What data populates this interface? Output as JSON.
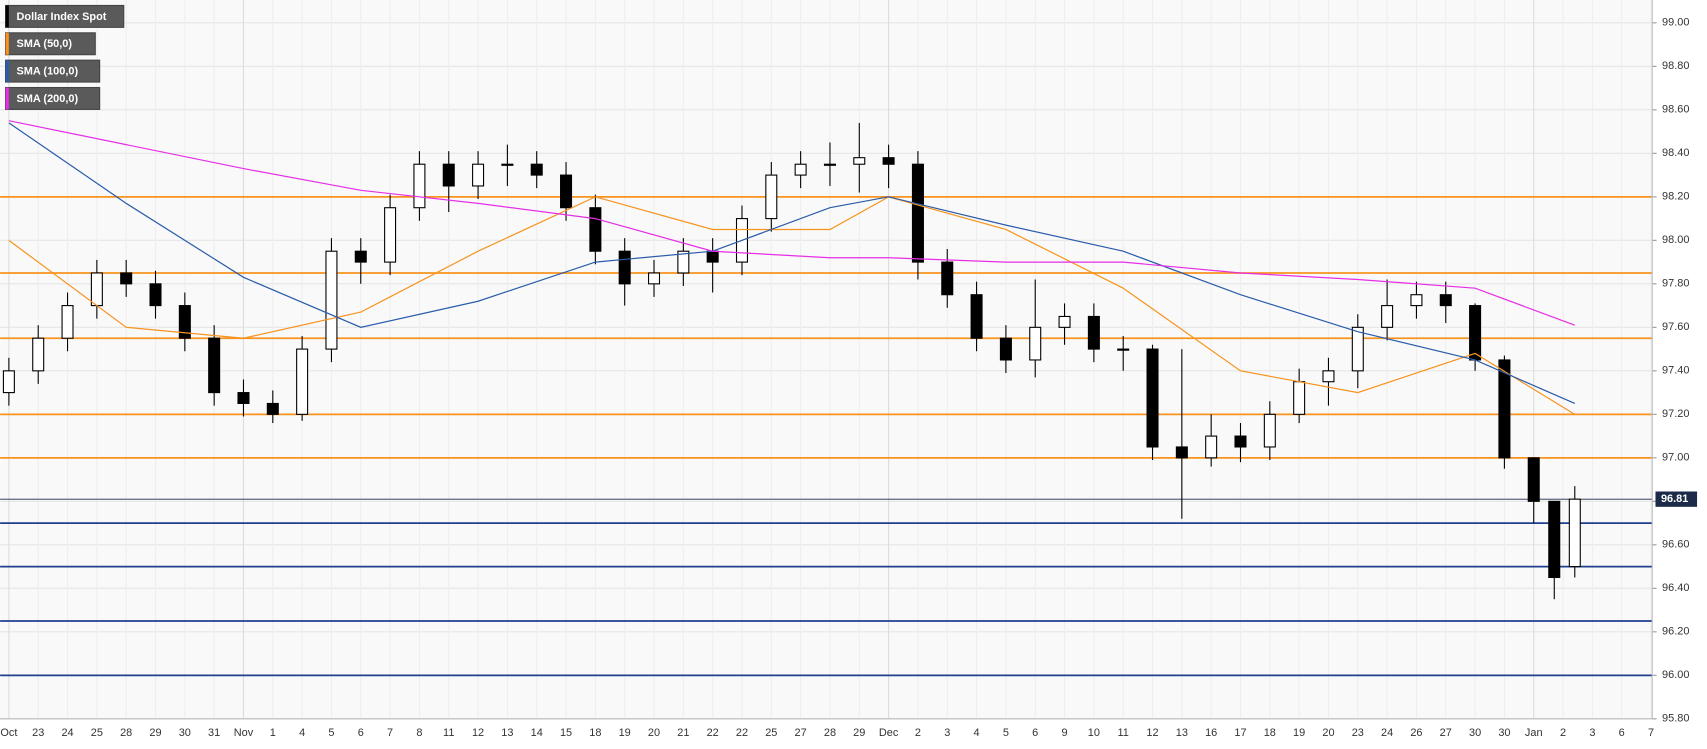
{
  "chart_data": {
    "type": "candlestick",
    "name": "Dollar Index Spot",
    "categories": [
      "Oct",
      "23",
      "24",
      "25",
      "28",
      "29",
      "30",
      "31",
      "Nov",
      "1",
      "4",
      "5",
      "6",
      "7",
      "8",
      "11",
      "12",
      "13",
      "14",
      "15",
      "18",
      "19",
      "20",
      "21",
      "22",
      "22",
      "25",
      "27",
      "28",
      "29",
      "Dec",
      "2",
      "3",
      "4",
      "5",
      "6",
      "9",
      "10",
      "11",
      "12",
      "13",
      "16",
      "17",
      "18",
      "19",
      "20",
      "23",
      "24",
      "26",
      "27",
      "30",
      "30",
      "Jan",
      "2",
      "3",
      "6",
      "7"
    ],
    "xlim": [
      -0.3,
      56.04
    ],
    "x": [
      0,
      1,
      2,
      3,
      4,
      5,
      6,
      7,
      8,
      9,
      10,
      11,
      12,
      13,
      14,
      15,
      16,
      17,
      18,
      19,
      20,
      21,
      22,
      23,
      24,
      25,
      26,
      27,
      28,
      29,
      30,
      31,
      32,
      33,
      34,
      35,
      36,
      37,
      38,
      39,
      40,
      41,
      42,
      43,
      44,
      45,
      46,
      47,
      48,
      49,
      50,
      51,
      52,
      52.7,
      53.4
    ],
    "open": [
      97.3,
      97.4,
      97.55,
      97.7,
      97.85,
      97.8,
      97.7,
      97.55,
      97.3,
      97.25,
      97.2,
      97.5,
      97.95,
      97.9,
      98.15,
      98.35,
      98.25,
      98.35,
      98.35,
      98.3,
      98.15,
      97.95,
      97.8,
      97.85,
      97.95,
      97.9,
      98.1,
      98.3,
      98.35,
      98.35,
      98.38,
      98.35,
      97.9,
      97.75,
      97.55,
      97.45,
      97.6,
      97.65,
      97.5,
      97.5,
      97.05,
      97.0,
      97.1,
      97.05,
      97.2,
      97.35,
      97.4,
      97.6,
      97.7,
      97.75,
      97.7,
      97.45,
      97.0,
      96.8,
      96.5
    ],
    "high": [
      97.46,
      97.61,
      97.76,
      97.91,
      97.91,
      97.86,
      97.76,
      97.61,
      97.36,
      97.31,
      97.56,
      98.01,
      98.01,
      98.21,
      98.41,
      98.41,
      98.41,
      98.44,
      98.41,
      98.36,
      98.21,
      98.01,
      97.91,
      98.01,
      98.01,
      98.16,
      98.36,
      98.41,
      98.45,
      98.54,
      98.44,
      98.41,
      97.96,
      97.81,
      97.61,
      97.82,
      97.71,
      97.71,
      97.56,
      97.52,
      97.5,
      97.2,
      97.16,
      97.26,
      97.41,
      97.46,
      97.66,
      97.82,
      97.81,
      97.81,
      97.71,
      97.47,
      97.0,
      96.8,
      96.87
    ],
    "low": [
      97.24,
      97.34,
      97.49,
      97.64,
      97.74,
      97.64,
      97.49,
      97.24,
      97.19,
      97.16,
      97.17,
      97.44,
      97.8,
      97.84,
      98.09,
      98.13,
      98.19,
      98.25,
      98.24,
      98.09,
      97.89,
      97.7,
      97.74,
      97.79,
      97.76,
      97.84,
      98.04,
      98.24,
      98.25,
      98.22,
      98.24,
      97.82,
      97.69,
      97.49,
      97.39,
      97.37,
      97.52,
      97.44,
      97.4,
      96.99,
      96.72,
      96.96,
      96.98,
      96.99,
      97.16,
      97.24,
      97.32,
      97.54,
      97.64,
      97.62,
      97.4,
      96.95,
      96.7,
      96.35,
      96.45
    ],
    "close": [
      97.4,
      97.55,
      97.7,
      97.85,
      97.8,
      97.7,
      97.55,
      97.3,
      97.25,
      97.2,
      97.5,
      97.95,
      97.9,
      98.15,
      98.35,
      98.25,
      98.35,
      98.35,
      98.3,
      98.15,
      97.95,
      97.8,
      97.85,
      97.95,
      97.9,
      98.1,
      98.3,
      98.35,
      98.35,
      98.38,
      98.35,
      97.9,
      97.75,
      97.55,
      97.45,
      97.6,
      97.65,
      97.5,
      97.5,
      97.05,
      97.0,
      97.1,
      97.05,
      97.2,
      97.35,
      97.4,
      97.6,
      97.7,
      97.75,
      97.7,
      97.45,
      97.0,
      96.8,
      96.45,
      96.81
    ],
    "up_color": "#ffffff",
    "down_color": "#000000",
    "color": "#000000",
    "series": [
      {
        "name": "SMA (50,0)",
        "color": "#f7931e",
        "x": [
          0,
          4,
          8,
          12,
          16,
          20,
          24,
          28,
          30,
          34,
          38,
          42,
          46,
          50,
          53.4
        ],
        "values": [
          98.0,
          97.6,
          97.55,
          97.67,
          97.95,
          98.2,
          98.05,
          98.05,
          98.2,
          98.05,
          97.78,
          97.4,
          97.3,
          97.48,
          97.2
        ]
      },
      {
        "name": "SMA (100,0)",
        "color": "#2a5caa",
        "x": [
          0,
          4,
          8,
          12,
          16,
          20,
          24,
          28,
          30,
          34,
          38,
          42,
          46,
          50,
          53.4
        ],
        "values": [
          98.54,
          98.17,
          97.83,
          97.6,
          97.72,
          97.9,
          97.95,
          98.15,
          98.2,
          98.07,
          97.95,
          97.75,
          97.58,
          97.45,
          97.25
        ]
      },
      {
        "name": "SMA (200,0)",
        "color": "#e62ee6",
        "x": [
          0,
          4,
          8,
          12,
          16,
          20,
          24,
          28,
          30,
          34,
          38,
          42,
          46,
          50,
          53.4
        ],
        "values": [
          98.55,
          98.44,
          98.33,
          98.23,
          98.17,
          98.1,
          97.95,
          97.92,
          97.92,
          97.9,
          97.9,
          97.85,
          97.82,
          97.78,
          97.61
        ]
      }
    ],
    "levels": [
      {
        "value": 98.2,
        "color": "#f7931e"
      },
      {
        "value": 97.85,
        "color": "#f7931e"
      },
      {
        "value": 97.55,
        "color": "#f7931e"
      },
      {
        "value": 97.2,
        "color": "#f7931e"
      },
      {
        "value": 97.0,
        "color": "#f7931e"
      },
      {
        "value": 96.7,
        "color": "#1f3f8f"
      },
      {
        "value": 96.5,
        "color": "#1f3f8f"
      },
      {
        "value": 96.25,
        "color": "#1f3f8f"
      },
      {
        "value": 96.0,
        "color": "#1f3f8f"
      }
    ],
    "last_price": 96.81,
    "last_price_color": "#1c2b4a",
    "ylim": [
      95.8,
      99.1
    ],
    "yticks": [
      {
        "value": 95.8,
        "label": "95.80"
      },
      {
        "value": 96.0,
        "label": "96.00"
      },
      {
        "value": 96.2,
        "label": "96.20"
      },
      {
        "value": 96.4,
        "label": "96.40"
      },
      {
        "value": 96.6,
        "label": "96.60"
      },
      {
        "value": 96.8,
        "label": "96.80"
      },
      {
        "value": 97.0,
        "label": "97.00"
      },
      {
        "value": 97.2,
        "label": "97.20"
      },
      {
        "value": 97.4,
        "label": "97.40"
      },
      {
        "value": 97.6,
        "label": "97.60"
      },
      {
        "value": 97.8,
        "label": "97.80"
      },
      {
        "value": 98.0,
        "label": "98.00"
      },
      {
        "value": 98.2,
        "label": "98.20"
      },
      {
        "value": 98.4,
        "label": "98.40"
      },
      {
        "value": 98.6,
        "label": "98.60"
      },
      {
        "value": 98.8,
        "label": "98.80"
      },
      {
        "value": 99.0,
        "label": "99.00"
      }
    ],
    "grid": true
  }
}
